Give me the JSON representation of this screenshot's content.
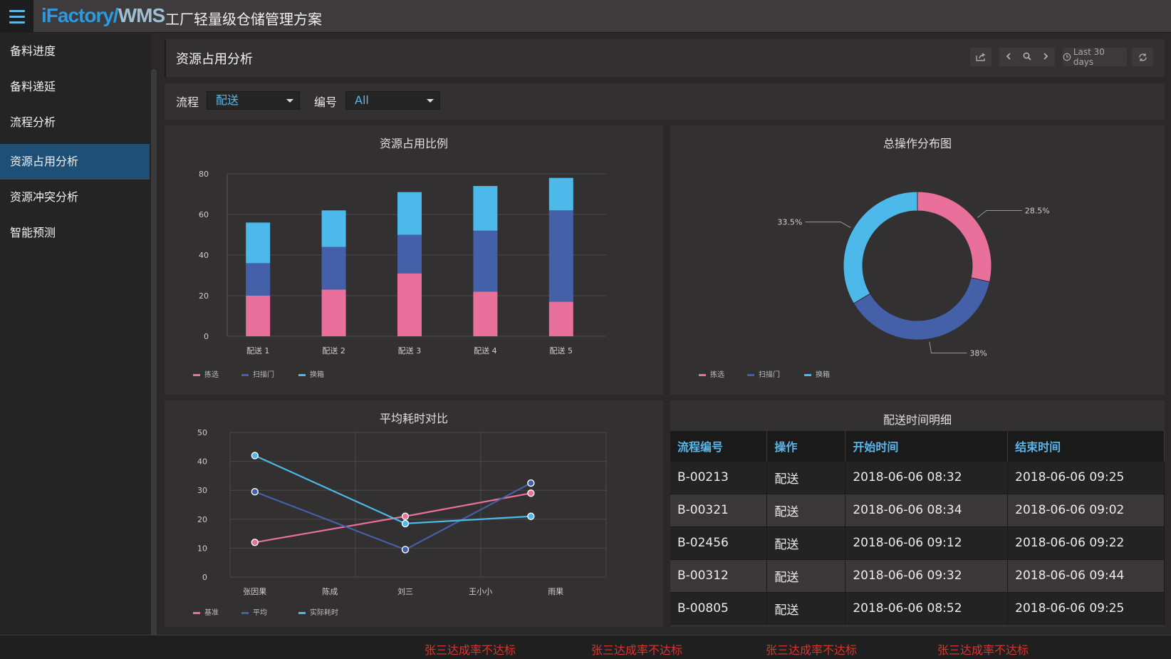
{
  "app": {
    "brand_a": "iFactory/",
    "brand_b": "WMS",
    "subtitle": "工厂轻量级仓储管理方案"
  },
  "sidebar": {
    "items": [
      {
        "label": "备料进度"
      },
      {
        "label": "备料递延"
      },
      {
        "label": "流程分析"
      },
      {
        "label": "资源占用分析",
        "active": true
      },
      {
        "label": "资源冲突分析"
      },
      {
        "label": "智能预测"
      }
    ]
  },
  "header": {
    "title": "资源占用分析",
    "time_range": "Last 30 days"
  },
  "filters": {
    "process_label": "流程",
    "process_value": "配送",
    "number_label": "编号",
    "number_value": "All"
  },
  "colors": {
    "pink": "#e9709a",
    "blue": "#4460a8",
    "cyan": "#4cb9ea"
  },
  "chart_data": [
    {
      "type": "bar",
      "title": "资源占用比例",
      "categories": [
        "配送 1",
        "配送 2",
        "配送 3",
        "配送 4",
        "配送 5"
      ],
      "ylim": [
        0,
        80
      ],
      "yticks": [
        0,
        20,
        40,
        60,
        80
      ],
      "stacked": true,
      "grid": true,
      "legend": "bottom-left",
      "series": [
        {
          "name": "拣选",
          "color": "#e9709a",
          "values": [
            20,
            23,
            31,
            22,
            17
          ]
        },
        {
          "name": "扫描门",
          "color": "#4460a8",
          "values": [
            16,
            21,
            19,
            30,
            45
          ]
        },
        {
          "name": "换箱",
          "color": "#4cb9ea",
          "values": [
            20,
            18,
            21,
            22,
            16
          ]
        }
      ]
    },
    {
      "type": "pie",
      "title": "总操作分布图",
      "donut": true,
      "legend": "bottom-left",
      "series": [
        {
          "name": "拣选",
          "color": "#e9709a",
          "value": 28.5,
          "label": "28.5%"
        },
        {
          "name": "扫描门",
          "color": "#4460a8",
          "value": 38,
          "label": "38%"
        },
        {
          "name": "换箱",
          "color": "#4cb9ea",
          "value": 33.5,
          "label": "33.5%"
        }
      ]
    },
    {
      "type": "line",
      "title": "平均耗时对比",
      "categories": [
        "张因果",
        "陈成",
        "刘三",
        "王小小",
        "雨果"
      ],
      "ylim": [
        0,
        50
      ],
      "yticks": [
        0,
        10,
        20,
        30,
        40,
        50
      ],
      "grid": true,
      "legend": "bottom-left",
      "series": [
        {
          "name": "基准",
          "color": "#e9709a",
          "points": [
            [
              0,
              12
            ],
            [
              2,
              21
            ],
            [
              3.67,
              29
            ]
          ]
        },
        {
          "name": "平均",
          "color": "#4460a8",
          "points": [
            [
              0,
              29.5
            ],
            [
              2,
              9.5
            ],
            [
              3.67,
              32.5
            ]
          ]
        },
        {
          "name": "实际耗时",
          "color": "#4cb9ea",
          "points": [
            [
              0,
              42
            ],
            [
              2,
              18.5
            ],
            [
              3.67,
              21
            ]
          ]
        }
      ]
    }
  ],
  "detail": {
    "title": "配送时间明细",
    "columns": [
      "流程编号",
      "操作",
      "开始时间",
      "结束时间"
    ],
    "rows": [
      [
        "B-00213",
        "配送",
        "2018-06-06  08:32",
        "2018-06-06  09:25"
      ],
      [
        "B-00321",
        "配送",
        "2018-06-06  08:34",
        "2018-06-06  09:02"
      ],
      [
        "B-02456",
        "配送",
        "2018-06-06  09:12",
        "2018-06-06  09:22"
      ],
      [
        "B-00312",
        "配送",
        "2018-06-06  09:32",
        "2018-06-06  09:44"
      ],
      [
        "B-00805",
        "配送",
        "2018-06-06  08:52",
        "2018-06-06  09:25"
      ]
    ]
  },
  "alerts": [
    "张三达成率不达标",
    "张三达成率不达标",
    "张三达成率不达标",
    "张三达成率不达标"
  ]
}
